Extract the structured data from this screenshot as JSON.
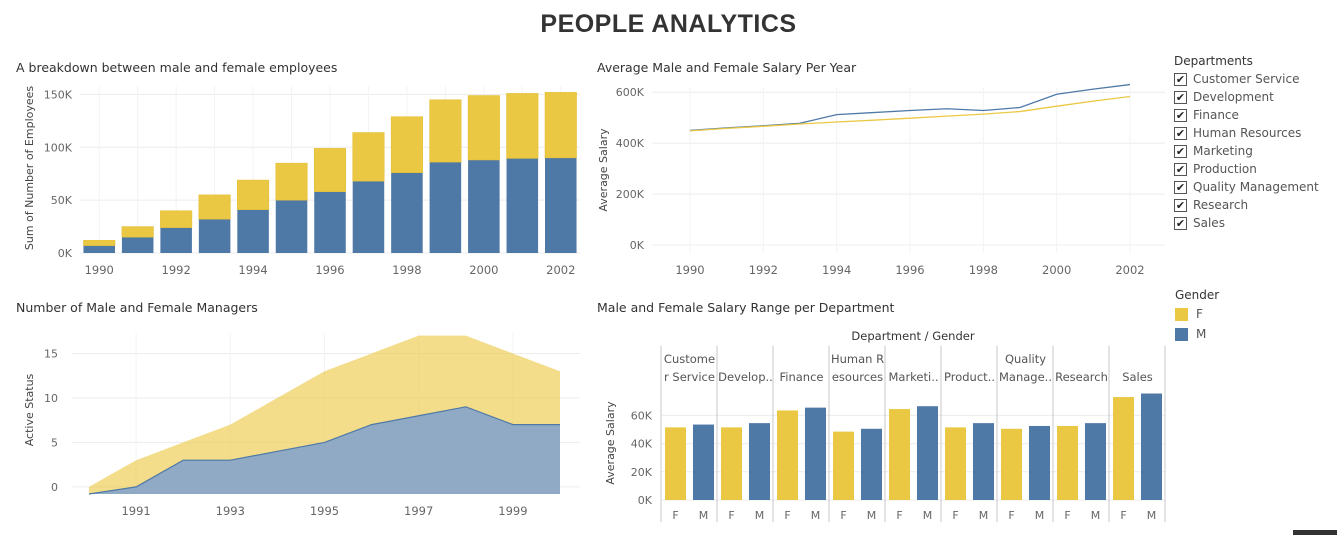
{
  "page": {
    "title": "PEOPLE ANALYTICS"
  },
  "colors": {
    "female": "#ebc844",
    "male": "#4e79a7",
    "grid": "#ececec",
    "axis_text": "#666666"
  },
  "legend_departments": {
    "title": "Departments",
    "items": [
      "Customer Service",
      "Development",
      "Finance",
      "Human Resources",
      "Marketing",
      "Production",
      "Quality Management",
      "Research",
      "Sales"
    ]
  },
  "legend_gender": {
    "title": "Gender",
    "items": [
      {
        "label": "F",
        "color": "#ebc844"
      },
      {
        "label": "M",
        "color": "#4e79a7"
      }
    ]
  },
  "chart_data": [
    {
      "id": "employees",
      "type": "bar",
      "stacked": true,
      "title": "A breakdown between male and female employees",
      "ylabel": "Sum of Number of Employees",
      "xlabel": "",
      "categories": [
        1990,
        1991,
        1992,
        1993,
        1994,
        1995,
        1996,
        1997,
        1998,
        1999,
        2000,
        2001,
        2002
      ],
      "x_ticks": [
        "1990",
        "1992",
        "1994",
        "1996",
        "1998",
        "2000",
        "2002"
      ],
      "y_ticks": [
        {
          "v": 0,
          "label": "0K"
        },
        {
          "v": 50000,
          "label": "50K"
        },
        {
          "v": 100000,
          "label": "100K"
        },
        {
          "v": 150000,
          "label": "150K"
        }
      ],
      "ylim": [
        0,
        158000
      ],
      "series": [
        {
          "name": "M",
          "values": [
            7000,
            15000,
            24000,
            32000,
            41000,
            50000,
            58000,
            68000,
            76000,
            86000,
            88000,
            89500,
            90000
          ]
        },
        {
          "name": "F",
          "values": [
            5000,
            10000,
            16000,
            23000,
            28000,
            35000,
            41000,
            46000,
            53000,
            59000,
            61000,
            61500,
            62000
          ]
        }
      ]
    },
    {
      "id": "salary_year",
      "type": "line",
      "title": "Average Male and Female Salary Per Year",
      "ylabel": "Average Salary",
      "xlabel": "",
      "x": [
        1990,
        1991,
        1992,
        1993,
        1994,
        1995,
        1996,
        1997,
        1998,
        1999,
        2000,
        2001,
        2002
      ],
      "x_ticks": [
        "1990",
        "1992",
        "1994",
        "1996",
        "1998",
        "2000",
        "2002"
      ],
      "y_ticks": [
        {
          "v": 0,
          "label": "0K"
        },
        {
          "v": 200000,
          "label": "200K"
        },
        {
          "v": 400000,
          "label": "400K"
        },
        {
          "v": 600000,
          "label": "600K"
        }
      ],
      "ylim": [
        0,
        640000
      ],
      "series": [
        {
          "name": "M",
          "values": [
            450000,
            460000,
            468000,
            478000,
            512000,
            520000,
            528000,
            535000,
            528000,
            540000,
            592000,
            612000,
            630000
          ]
        },
        {
          "name": "F",
          "values": [
            448000,
            458000,
            466000,
            475000,
            483000,
            490000,
            498000,
            506000,
            514000,
            524000,
            545000,
            565000,
            583000
          ]
        }
      ]
    },
    {
      "id": "managers",
      "type": "area",
      "stacked": false,
      "title": "Number of Male and Female Managers",
      "ylabel": "Active Status",
      "xlabel": "",
      "x": [
        1990,
        1991,
        1992,
        1993,
        1994,
        1995,
        1996,
        1997,
        1998,
        1999,
        2000
      ],
      "x_ticks": [
        "1991",
        "1993",
        "1995",
        "1997",
        "1999"
      ],
      "y_ticks": [
        {
          "v": 0,
          "label": "0"
        },
        {
          "v": 5,
          "label": "5"
        },
        {
          "v": 10,
          "label": "10"
        },
        {
          "v": 15,
          "label": "15"
        }
      ],
      "ylim": [
        -0.8,
        17.3
      ],
      "series": [
        {
          "name": "F",
          "values": [
            0,
            3,
            5,
            7,
            10,
            13,
            15,
            17,
            17,
            15,
            13
          ]
        },
        {
          "name": "M",
          "values": [
            -0.8,
            0,
            3,
            3,
            4,
            5,
            7,
            8,
            9,
            7,
            7
          ]
        }
      ]
    },
    {
      "id": "salary_dept",
      "type": "bar",
      "title": "Male and Female Salary Range per Department",
      "header": "Department  /  Gender",
      "ylabel": "Average Salary",
      "xlabel": "",
      "y_ticks": [
        {
          "v": 0,
          "label": "0K"
        },
        {
          "v": 20000,
          "label": "20K"
        },
        {
          "v": 40000,
          "label": "40K"
        },
        {
          "v": 60000,
          "label": "60K"
        }
      ],
      "ylim": [
        0,
        78000
      ],
      "departments": [
        {
          "label": [
            "Custome",
            "r Service"
          ],
          "F": 51500,
          "M": 53500
        },
        {
          "label": [
            "Develop.."
          ],
          "F": 51500,
          "M": 54500
        },
        {
          "label": [
            "Finance"
          ],
          "F": 63500,
          "M": 65500
        },
        {
          "label": [
            "Human R",
            "esources"
          ],
          "F": 48500,
          "M": 50500
        },
        {
          "label": [
            "Marketi.."
          ],
          "F": 64500,
          "M": 66500
        },
        {
          "label": [
            "Product.."
          ],
          "F": 51500,
          "M": 54500
        },
        {
          "label": [
            "Quality",
            "Manage.."
          ],
          "F": 50500,
          "M": 52500
        },
        {
          "label": [
            "Research"
          ],
          "F": 52500,
          "M": 54500
        },
        {
          "label": [
            "Sales"
          ],
          "F": 73000,
          "M": 75500
        }
      ],
      "gender_ticks": [
        "F",
        "M"
      ]
    }
  ]
}
